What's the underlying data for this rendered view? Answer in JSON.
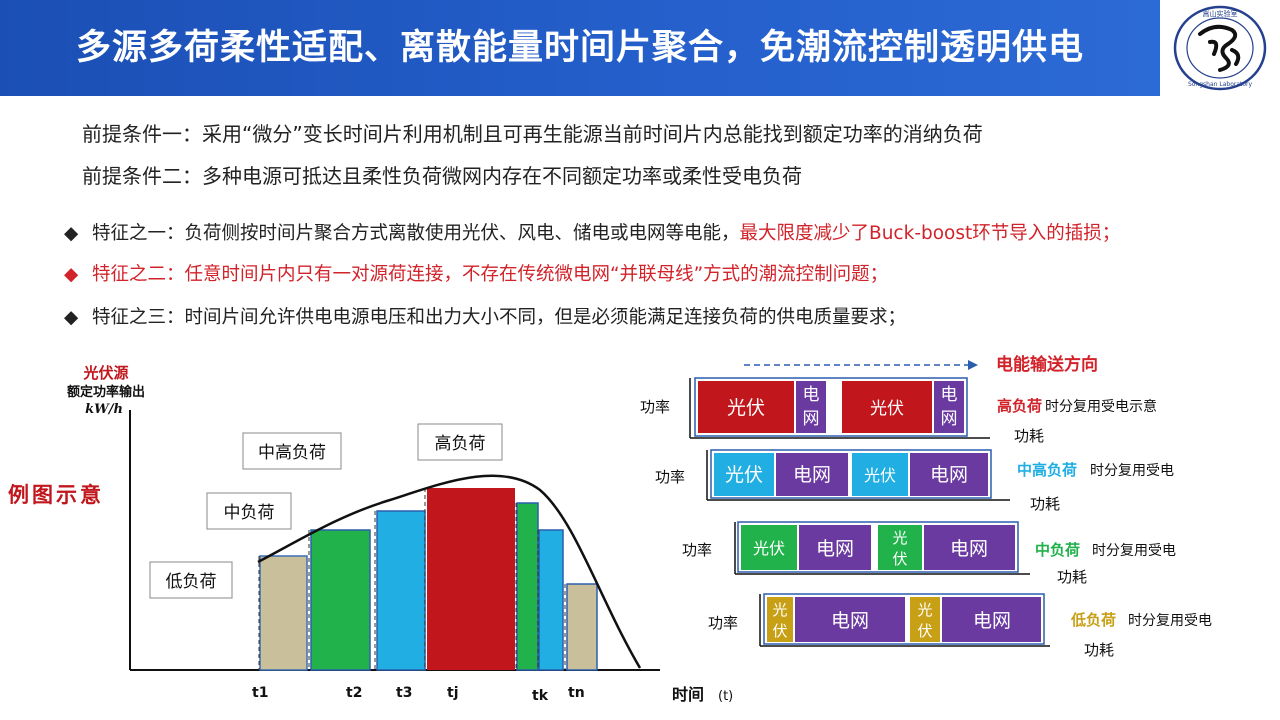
{
  "header": {
    "title": "多源多荷柔性适配、离散能量时间片聚合，免潮流控制透明供电"
  },
  "logo": {
    "text_cn": "嵩山实验室",
    "text_en": "Songshan Laboratory",
    "colors": {
      "ring": "#24408e",
      "mark": "#111111"
    }
  },
  "premises": [
    "前提条件一：采用“微分”变长时间片利用机制且可再生能源当前时间片内总能找到额定功率的消纳负荷",
    "前提条件二：多种电源可抵达且柔性负荷微网内存在不同额定功率或柔性受电负荷"
  ],
  "features": {
    "f1": {
      "bullet": "◆",
      "text": "特征之一：负荷侧按时间片聚合方式离散使用光伏、风电、储电或电网等电能，",
      "highlight": "最大限度减少了Buck-boost环节导入的插损；"
    },
    "f2": {
      "bullet": "◆",
      "text": "特征之二：任意时间片内只有一对源荷连接，不存在传统微电网“并联母线”方式的潮流控制问题；"
    },
    "f3": {
      "bullet": "◆",
      "text": "特征之三：时间片间允许供电电源电压和出力大小不同，但是必须能满足连接负荷的供电质量要求；"
    }
  },
  "left_chart": {
    "example_label": "例图示意",
    "ylabel_title": "光伏源",
    "ylabel_sub": "额定功率输出",
    "ylabel_unit": "kW/h",
    "xlabel": "时间",
    "xunit": "(t)",
    "load_labels": {
      "low": "低负荷",
      "mid": "中负荷",
      "midhigh": "中高负荷",
      "high": "高负荷"
    },
    "ticks": [
      "t1",
      "t2",
      "t3",
      "tj",
      "tk",
      "tn"
    ],
    "bar_colors": [
      "#c9bf9a",
      "#22b24c",
      "#20aee3",
      "#c0161c",
      "#22b24c",
      "#20aee3",
      "#c9bf9a"
    ]
  },
  "right_diagram": {
    "direction_label": "电能输送方向",
    "rows": [
      {
        "power": "功率",
        "cells": [
          {
            "t": "光伏",
            "c": "#c0161c"
          },
          {
            "t": "电\n网",
            "c": "#6a3aa0"
          },
          {
            "t": "光伏",
            "c": "#c0161c"
          },
          {
            "t": "电\n网",
            "c": "#6a3aa0"
          }
        ],
        "label_hl": "高负荷",
        "label_rest": "时分复用受电示意",
        "consume": "功耗"
      },
      {
        "power": "功率",
        "cells": [
          {
            "t": "光伏",
            "c": "#20aee3"
          },
          {
            "t": "电网",
            "c": "#6a3aa0"
          },
          {
            "t": "光伏",
            "c": "#20aee3"
          },
          {
            "t": "电网",
            "c": "#6a3aa0"
          }
        ],
        "label_hl": "中高负荷",
        "label_rest": "时分复用受电",
        "consume": "功耗"
      },
      {
        "power": "功率",
        "cells": [
          {
            "t": "光伏",
            "c": "#22b24c"
          },
          {
            "t": "电网",
            "c": "#6a3aa0"
          },
          {
            "t": "光\n伏",
            "c": "#22b24c"
          },
          {
            "t": "电网",
            "c": "#6a3aa0"
          }
        ],
        "label_hl": "中负荷",
        "label_rest": "时分复用受电",
        "consume": "功耗"
      },
      {
        "power": "功率",
        "cells": [
          {
            "t": "光\n伏",
            "c": "#c8a016"
          },
          {
            "t": "电网",
            "c": "#6a3aa0"
          },
          {
            "t": "光\n伏",
            "c": "#c8a016"
          },
          {
            "t": "电网",
            "c": "#6a3aa0"
          }
        ],
        "label_hl": "低负荷",
        "label_rest": "时分复用受电",
        "consume": "功耗"
      }
    ],
    "hl_colors": [
      "#d2232a",
      "#20aee3",
      "#22b24c",
      "#c8a016"
    ]
  }
}
